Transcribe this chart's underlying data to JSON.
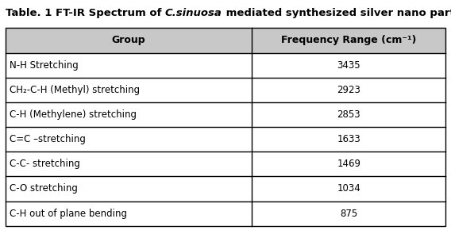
{
  "title_plain1": "Table. 1 FT-IR Spectrum of ",
  "title_italic": "C.sinuosa",
  "title_plain2": " mediated synthesized silver nano particles.",
  "col_headers": [
    "Group",
    "Frequency Range (cm⁻¹)"
  ],
  "header_col2_parts": [
    "Frequency Range (cm",
    "-1",
    ")"
  ],
  "rows": [
    [
      "N-H Stretching",
      "3435"
    ],
    [
      "CH₂-C-H (Methyl) stretching",
      "2923"
    ],
    [
      "C-H (Methylene) stretching",
      "2853"
    ],
    [
      "C=C –stretching",
      "1633"
    ],
    [
      "C-C- stretching",
      "1469"
    ],
    [
      "C-O stretching",
      "1034"
    ],
    [
      "C-H out of plane bending",
      "875"
    ]
  ],
  "col_split": 0.56,
  "header_bg": "#c8c8c8",
  "row_bg": "#ffffff",
  "text_color": "#000000",
  "border_color": "#000000",
  "title_fontsize": 9.5,
  "header_fontsize": 9.0,
  "cell_fontsize": 8.5,
  "fig_width": 5.68,
  "fig_height": 2.95,
  "dpi": 100
}
